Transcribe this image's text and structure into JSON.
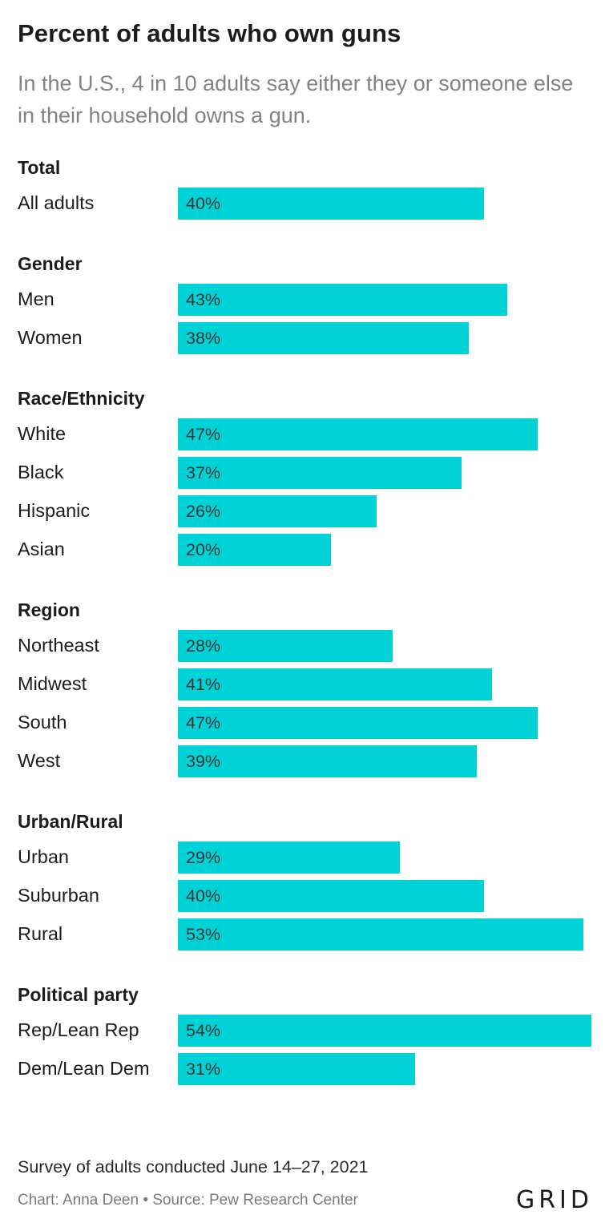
{
  "header": {
    "title": "Percent of adults who own guns",
    "subtitle": "In the U.S., 4 in 10 adults say either they or someone else in their household owns a gun."
  },
  "colors": {
    "bar": "#00d3d8",
    "text": "#1c1c1c",
    "muted": "#828282"
  },
  "chart_data": {
    "type": "bar",
    "orientation": "horizontal",
    "xlim": [
      0,
      54
    ],
    "value_suffix": "%",
    "groups": [
      {
        "name": "Total",
        "rows": [
          {
            "label": "All adults",
            "value": 40
          }
        ]
      },
      {
        "name": "Gender",
        "rows": [
          {
            "label": "Men",
            "value": 43
          },
          {
            "label": "Women",
            "value": 38
          }
        ]
      },
      {
        "name": "Race/Ethnicity",
        "rows": [
          {
            "label": "White",
            "value": 47
          },
          {
            "label": "Black",
            "value": 37
          },
          {
            "label": "Hispanic",
            "value": 26
          },
          {
            "label": "Asian",
            "value": 20
          }
        ]
      },
      {
        "name": "Region",
        "rows": [
          {
            "label": "Northeast",
            "value": 28
          },
          {
            "label": "Midwest",
            "value": 41
          },
          {
            "label": "South",
            "value": 47
          },
          {
            "label": "West",
            "value": 39
          }
        ]
      },
      {
        "name": "Urban/Rural",
        "rows": [
          {
            "label": "Urban",
            "value": 29
          },
          {
            "label": "Suburban",
            "value": 40
          },
          {
            "label": "Rural",
            "value": 53
          }
        ]
      },
      {
        "name": "Political party",
        "rows": [
          {
            "label": "Rep/Lean Rep",
            "value": 54
          },
          {
            "label": "Dem/Lean Dem",
            "value": 31
          }
        ]
      }
    ]
  },
  "footer": {
    "note": "Survey of adults conducted June 14–27, 2021",
    "credit": "Chart: Anna Deen • Source: Pew Research Center",
    "logo": "GRID"
  }
}
